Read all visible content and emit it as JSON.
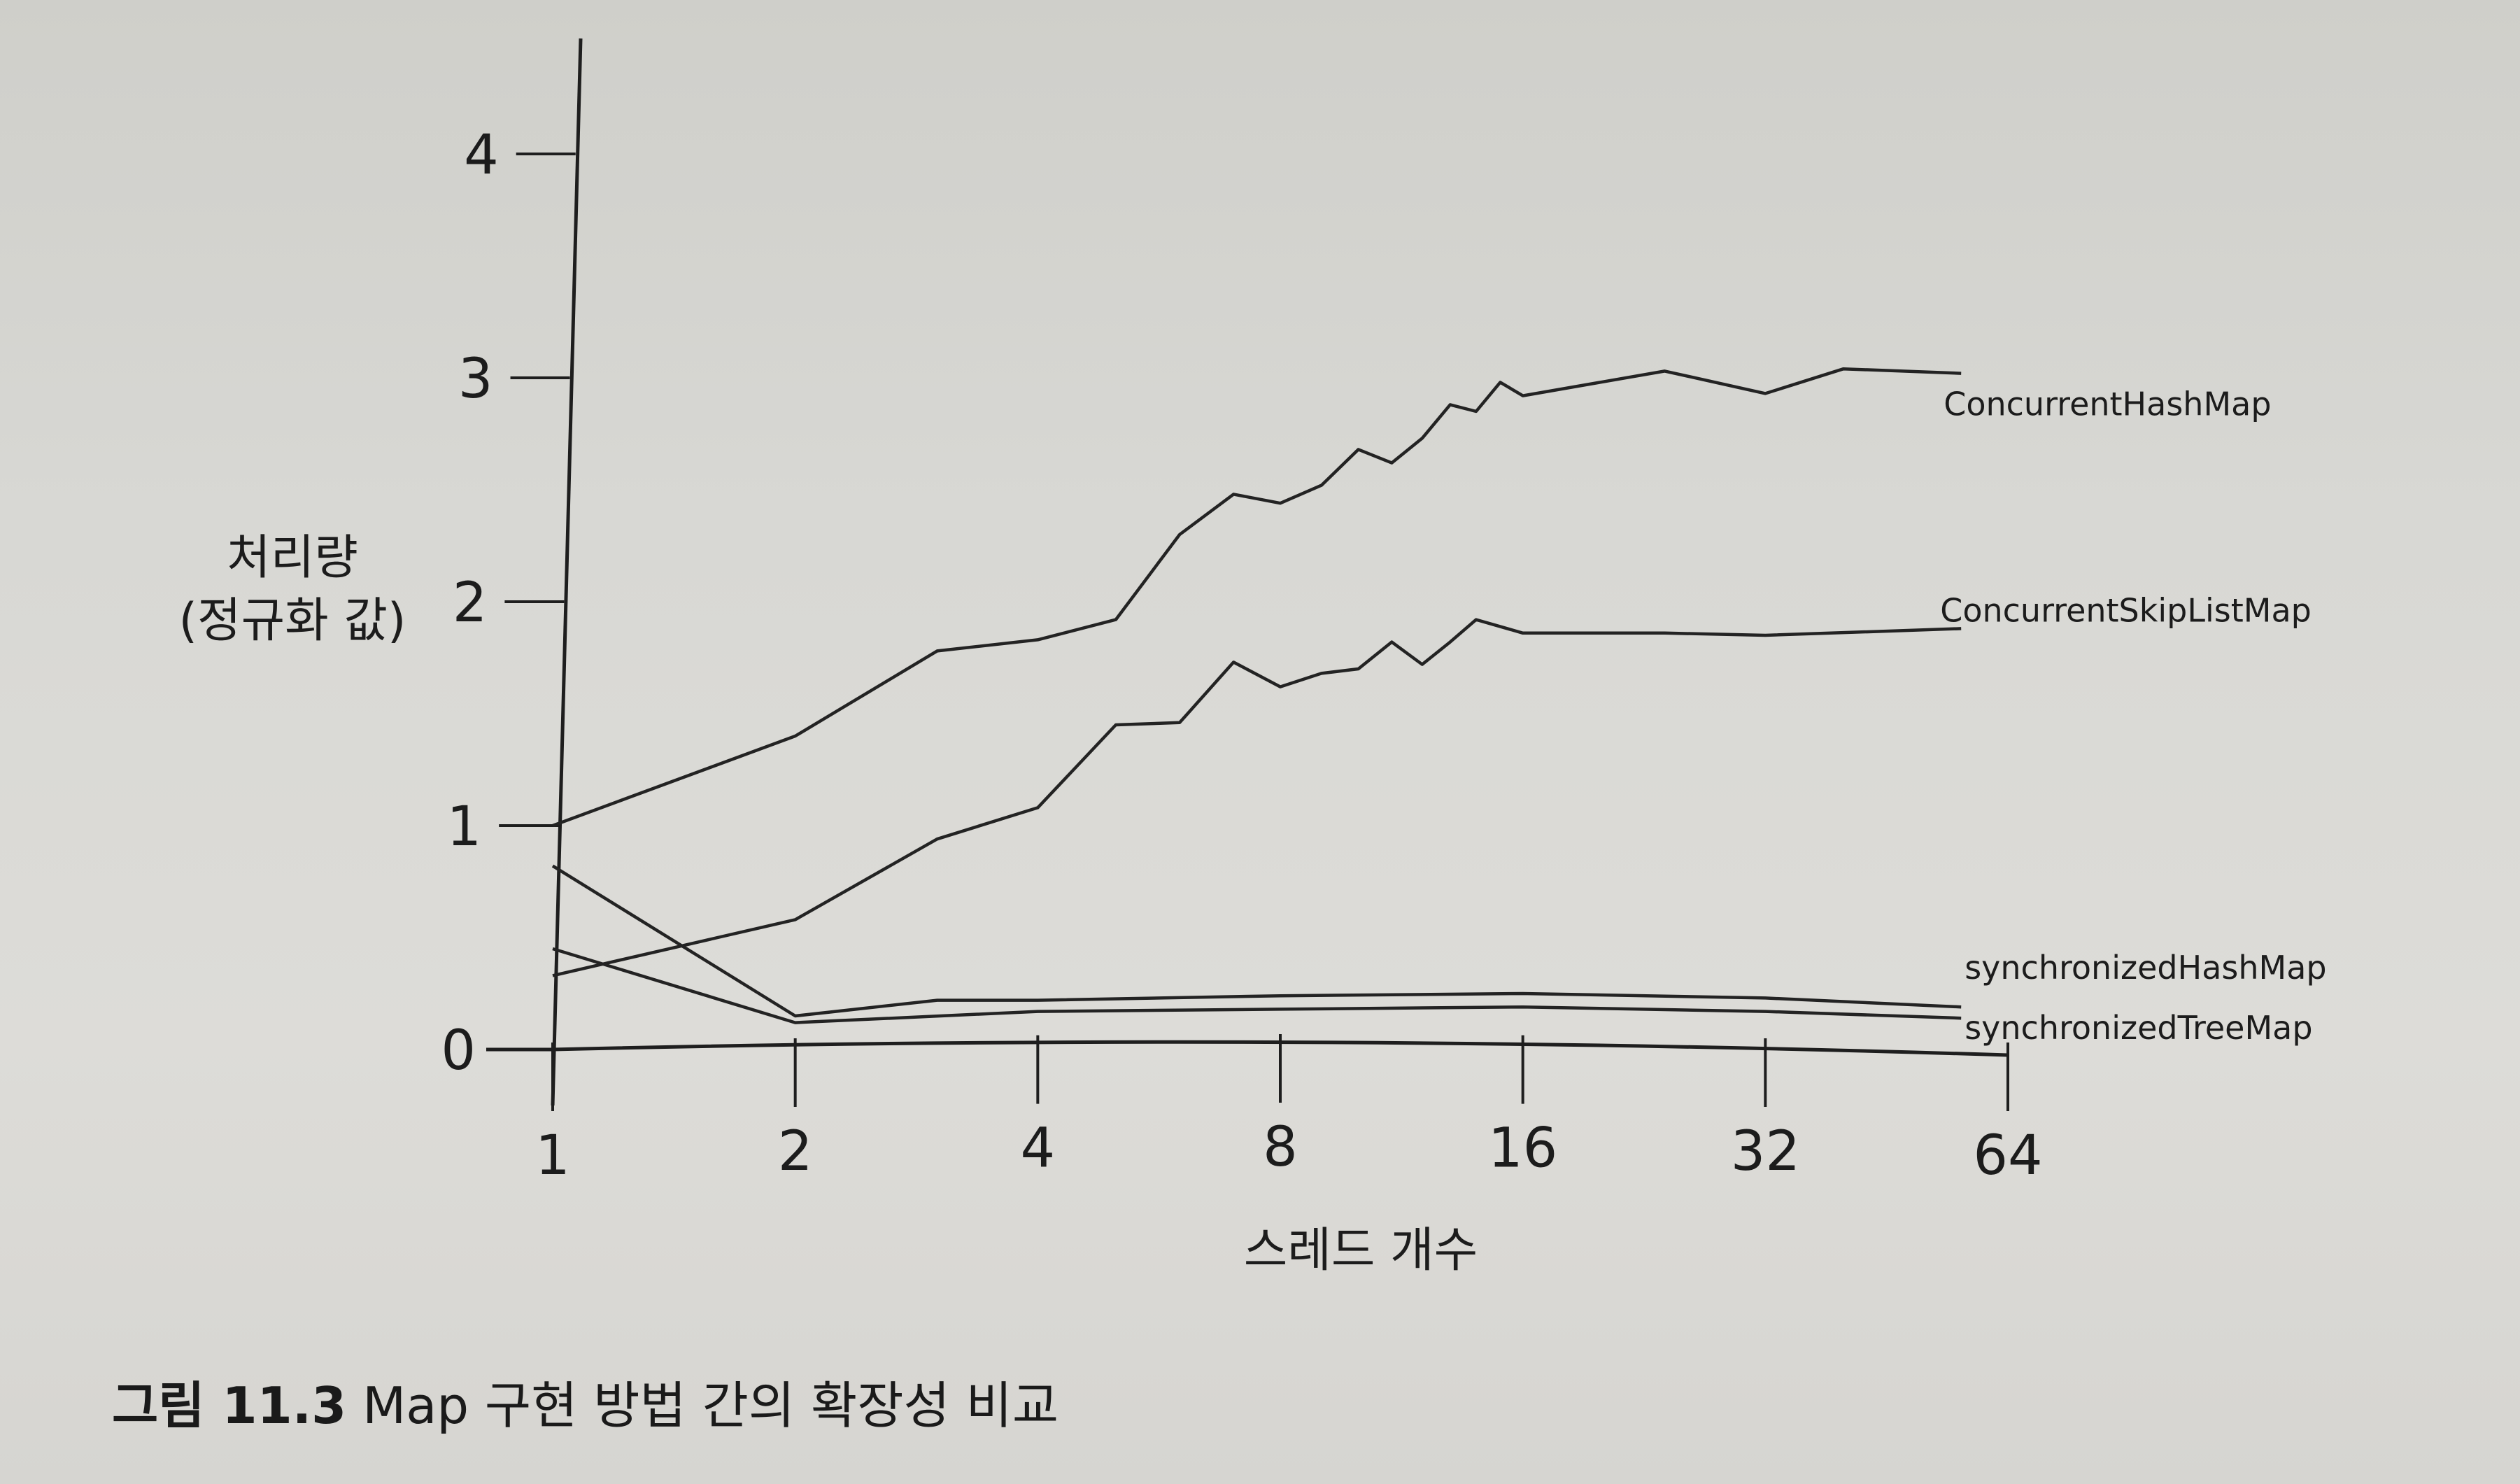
{
  "chart_data": {
    "type": "line",
    "xlabel": "스레드 개수",
    "ylabel": [
      "처리량",
      "(정규화 값)"
    ],
    "x_scale": "log2",
    "x_ticks": [
      1,
      2,
      4,
      8,
      16,
      32,
      64
    ],
    "y_ticks": [
      0,
      1,
      2,
      3,
      4
    ],
    "xlim": [
      1,
      64
    ],
    "ylim": [
      0,
      4.4
    ],
    "grid": false,
    "legend": "inline labels at line ends",
    "series": [
      {
        "name": "ConcurrentHashMap",
        "points": [
          [
            1,
            1.0
          ],
          [
            2,
            1.4
          ],
          [
            3,
            1.78
          ],
          [
            4,
            1.83
          ],
          [
            5,
            1.92
          ],
          [
            6,
            2.3
          ],
          [
            7,
            2.48
          ],
          [
            8,
            2.44
          ],
          [
            9,
            2.52
          ],
          [
            10,
            2.68
          ],
          [
            11,
            2.62
          ],
          [
            12,
            2.73
          ],
          [
            13,
            2.88
          ],
          [
            14,
            2.85
          ],
          [
            15,
            2.98
          ],
          [
            16,
            2.92
          ],
          [
            24,
            3.03
          ],
          [
            32,
            2.93
          ],
          [
            40,
            3.04
          ],
          [
            56,
            3.02
          ]
        ]
      },
      {
        "name": "ConcurrentSkipListMap",
        "points": [
          [
            1,
            0.33
          ],
          [
            2,
            0.58
          ],
          [
            3,
            0.94
          ],
          [
            4,
            1.08
          ],
          [
            5,
            1.45
          ],
          [
            6,
            1.46
          ],
          [
            7,
            1.73
          ],
          [
            8,
            1.62
          ],
          [
            9,
            1.68
          ],
          [
            10,
            1.7
          ],
          [
            11,
            1.82
          ],
          [
            12,
            1.72
          ],
          [
            13,
            1.82
          ],
          [
            14,
            1.92
          ],
          [
            16,
            1.86
          ],
          [
            24,
            1.86
          ],
          [
            32,
            1.85
          ],
          [
            56,
            1.88
          ]
        ]
      },
      {
        "name": "synchronizedHashMap",
        "points": [
          [
            1,
            0.82
          ],
          [
            2,
            0.15
          ],
          [
            3,
            0.22
          ],
          [
            4,
            0.22
          ],
          [
            8,
            0.24
          ],
          [
            16,
            0.25
          ],
          [
            32,
            0.23
          ],
          [
            56,
            0.19
          ]
        ]
      },
      {
        "name": "synchronizedTreeMap",
        "points": [
          [
            1,
            0.45
          ],
          [
            2,
            0.12
          ],
          [
            4,
            0.17
          ],
          [
            8,
            0.18
          ],
          [
            16,
            0.19
          ],
          [
            32,
            0.17
          ],
          [
            56,
            0.14
          ]
        ]
      }
    ]
  },
  "caption": {
    "label": "그림 11.3",
    "text": "Map 구현 방법 간의 확장성 비교"
  }
}
